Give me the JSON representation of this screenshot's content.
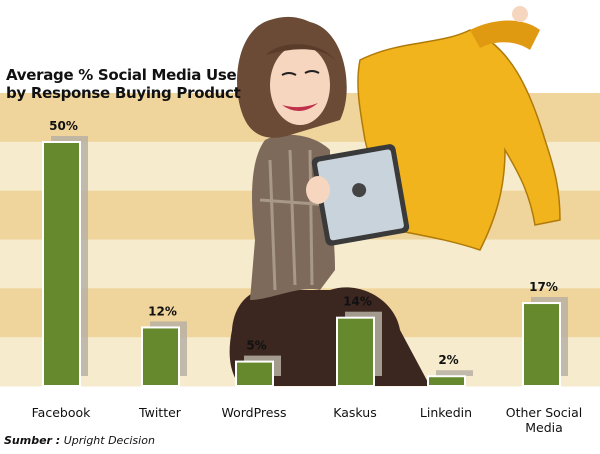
{
  "chart_data": {
    "type": "bar",
    "title": "Average % Social Media Use by Response Buying Product",
    "title_lines": [
      "Average % Social Media Use",
      "by Response Buying Product"
    ],
    "categories": [
      "Facebook",
      "Twitter",
      "WordPress",
      "Kaskus",
      "Linkedin",
      "Other Social Media"
    ],
    "values": [
      50,
      12,
      5,
      14,
      2,
      17
    ],
    "value_labels": [
      "50%",
      "12%",
      "5%",
      "14%",
      "2%",
      "17%"
    ],
    "unit": "%",
    "ylim": [
      0,
      60
    ],
    "xlabel": "",
    "ylabel": "",
    "grid": false
  },
  "source": {
    "label": "Sumber :",
    "text": "Upright Decision"
  },
  "colors": {
    "bar": "#66892e",
    "shadow": "#b7b0a3",
    "band_dark": "#efd49b",
    "band_light": "#f6ebcc",
    "coat": "#f1b41c",
    "hair": "#6b4a36",
    "pants": "#3b2620"
  }
}
